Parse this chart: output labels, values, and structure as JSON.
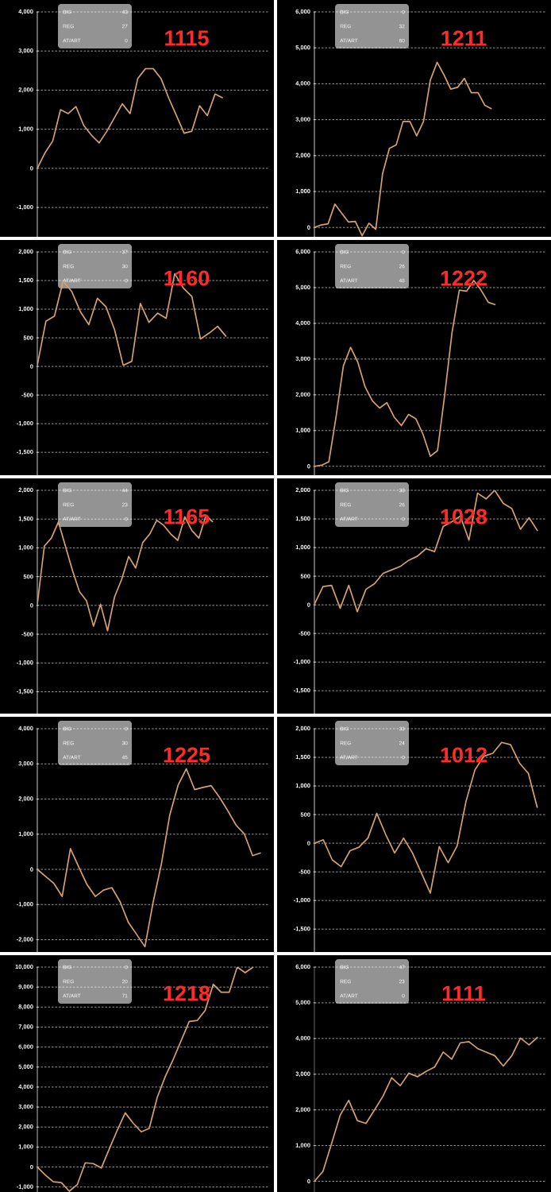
{
  "chart_data": [
    {
      "type": "line",
      "title": "1115",
      "annotations": [
        "BIG",
        "43",
        "REG",
        "27",
        "AT/ART",
        "0"
      ],
      "color": "#d4a070",
      "grid": true,
      "tick_labels": "y",
      "categories": [
        null,
        null,
        null,
        null,
        null,
        null,
        null,
        null,
        null,
        null,
        null,
        null,
        null,
        null,
        null,
        null,
        null,
        null,
        null,
        null,
        null,
        null,
        null,
        null,
        null,
        null,
        null,
        null,
        null,
        null,
        null
      ],
      "values": [
        0,
        400,
        700,
        1500,
        1400,
        1580,
        1100,
        850,
        650,
        950,
        1300,
        1650,
        1400,
        2300,
        2550,
        2550,
        2300,
        1800,
        1350,
        900,
        950,
        1600,
        1350,
        1900,
        1800,
        null,
        null,
        null,
        null,
        null,
        null
      ],
      "ylim": [
        -1750,
        4000
      ],
      "yticks": [
        {
          "value": -1000,
          "label": "-1,000"
        },
        0,
        {
          "value": 1000,
          "label": "1,000"
        },
        {
          "value": 2000,
          "label": "2,000"
        },
        {
          "value": 3000,
          "label": "3,000"
        },
        {
          "value": 4000,
          "label": "4,000"
        }
      ]
    },
    {
      "type": "line",
      "title": "1211",
      "annotations": [
        "BIG",
        "0",
        "REG",
        "32",
        "AT/ART",
        "60"
      ],
      "color": "#d4a070",
      "grid": true,
      "tick_labels": "y",
      "categories": [
        null,
        null,
        null,
        null,
        null,
        null,
        null,
        null,
        null,
        null,
        null,
        null,
        null,
        null,
        null,
        null,
        null,
        null,
        null,
        null,
        null,
        null,
        null,
        null,
        null,
        null,
        null,
        null,
        null,
        null,
        null,
        null,
        null,
        null,
        null
      ],
      "values": [
        0,
        70,
        100,
        650,
        400,
        150,
        170,
        -230,
        120,
        -50,
        1500,
        2200,
        2300,
        2950,
        2950,
        2550,
        2950,
        4100,
        4600,
        4250,
        3850,
        3900,
        4150,
        3750,
        3750,
        3400,
        3300,
        null,
        null,
        null,
        null,
        null,
        null,
        null,
        null
      ],
      "ylim": [
        -260,
        6000
      ],
      "yticks": [
        0,
        {
          "value": 1000,
          "label": "1,000"
        },
        {
          "value": 2000,
          "label": "2,000"
        },
        {
          "value": 3000,
          "label": "3,000"
        },
        {
          "value": 4000,
          "label": "4,000"
        },
        {
          "value": 5000,
          "label": "5,000"
        },
        {
          "value": 6000,
          "label": "6,000"
        }
      ]
    },
    {
      "type": "line",
      "title": "1160",
      "annotations": [
        "BIG",
        "37",
        "REG",
        "30",
        "AT/ART",
        "0"
      ],
      "color": "#d4a070",
      "grid": true,
      "tick_labels": "y",
      "categories": [
        null,
        null,
        null,
        null,
        null,
        null,
        null,
        null,
        null,
        null,
        null,
        null,
        null,
        null,
        null,
        null,
        null,
        null,
        null,
        null,
        null,
        null,
        null,
        null,
        null,
        null,
        null,
        null
      ],
      "values": [
        20,
        790,
        880,
        1490,
        1310,
        960,
        730,
        1190,
        1040,
        640,
        20,
        90,
        1100,
        770,
        930,
        840,
        1620,
        1370,
        1220,
        480,
        580,
        700,
        520,
        null,
        null,
        null,
        null,
        null
      ],
      "ylim": [
        -1900,
        2000
      ],
      "yticks": [
        {
          "value": -1500,
          "label": "-1,500"
        },
        {
          "value": -1000,
          "label": "-1,000"
        },
        -500,
        0,
        500,
        {
          "value": 1000,
          "label": "1,000"
        },
        {
          "value": 1500,
          "label": "1,500"
        },
        {
          "value": 2000,
          "label": "2,000"
        }
      ]
    },
    {
      "type": "line",
      "title": "1222",
      "annotations": [
        "BIG",
        "0",
        "REG",
        "26",
        "AT/ART",
        "48"
      ],
      "color": "#d4a070",
      "grid": true,
      "tick_labels": "y",
      "categories": [
        null,
        null,
        null,
        null,
        null,
        null,
        null,
        null,
        null,
        null,
        null,
        null,
        null,
        null,
        null,
        null,
        null,
        null,
        null,
        null,
        null,
        null,
        null,
        null,
        null,
        null,
        null,
        null,
        null,
        null,
        null,
        null,
        null
      ],
      "values": [
        0,
        30,
        130,
        1400,
        2810,
        3330,
        2910,
        2220,
        1830,
        1630,
        1780,
        1380,
        1140,
        1450,
        1330,
        890,
        280,
        440,
        2020,
        3750,
        4930,
        4900,
        5200,
        4930,
        4590,
        4520,
        null,
        null,
        null,
        null,
        null,
        null,
        null
      ],
      "ylim": [
        -250,
        6000
      ],
      "yticks": [
        0,
        {
          "value": 1000,
          "label": "1,000"
        },
        {
          "value": 2000,
          "label": "2,000"
        },
        {
          "value": 3000,
          "label": "3,000"
        },
        {
          "value": 4000,
          "label": "4,000"
        },
        {
          "value": 5000,
          "label": "5,000"
        },
        {
          "value": 6000,
          "label": "6,000"
        }
      ]
    },
    {
      "type": "line",
      "title": "1165",
      "annotations": [
        "BIG",
        "44",
        "REG",
        "23",
        "AT/ART",
        "0"
      ],
      "color": "#d4a070",
      "grid": true,
      "tick_labels": "y",
      "categories": [
        null,
        null,
        null,
        null,
        null,
        null,
        null,
        null,
        null,
        null,
        null,
        null,
        null,
        null,
        null,
        null,
        null,
        null,
        null,
        null,
        null,
        null,
        null,
        null,
        null,
        null,
        null,
        null,
        null,
        null,
        null,
        null,
        null,
        null
      ],
      "values": [
        20,
        1030,
        1170,
        1450,
        1030,
        610,
        240,
        80,
        -360,
        20,
        -440,
        150,
        450,
        850,
        650,
        1090,
        1240,
        1480,
        1390,
        1240,
        1130,
        1540,
        1300,
        1170,
        1560,
        1450,
        null,
        null,
        null,
        null,
        null,
        null,
        null,
        null
      ],
      "ylim": [
        -1880,
        2000
      ],
      "yticks": [
        {
          "value": -1500,
          "label": "-1,500"
        },
        {
          "value": -1000,
          "label": "-1,000"
        },
        -500,
        0,
        500,
        {
          "value": 1000,
          "label": "1,000"
        },
        {
          "value": 1500,
          "label": "1,500"
        },
        {
          "value": 2000,
          "label": "2,000"
        }
      ]
    },
    {
      "type": "line",
      "title": "1028",
      "annotations": [
        "BIG",
        "38",
        "REG",
        "26",
        "AT/ART",
        "0"
      ],
      "color": "#d4a070",
      "grid": true,
      "tick_labels": "y",
      "categories": [
        null,
        null,
        null,
        null,
        null,
        null,
        null,
        null,
        null,
        null,
        null,
        null,
        null,
        null,
        null,
        null,
        null,
        null,
        null,
        null,
        null,
        null,
        null,
        null,
        null,
        null,
        null,
        null
      ],
      "values": [
        10,
        320,
        340,
        -60,
        340,
        -120,
        270,
        370,
        550,
        610,
        670,
        780,
        850,
        980,
        930,
        1370,
        1450,
        1550,
        1130,
        1950,
        1850,
        2000,
        1770,
        1680,
        1320,
        1520,
        1290,
        null
      ],
      "ylim": [
        -1900,
        2000
      ],
      "yticks": [
        {
          "value": -1500,
          "label": "-1,500"
        },
        {
          "value": -1000,
          "label": "-1,000"
        },
        -500,
        0,
        500,
        {
          "value": 1000,
          "label": "1,000"
        },
        {
          "value": 1500,
          "label": "1,500"
        },
        {
          "value": 2000,
          "label": "2,000"
        }
      ]
    },
    {
      "type": "line",
      "title": "1225",
      "annotations": [
        "BIG",
        "0",
        "REG",
        "30",
        "AT/ART",
        "45"
      ],
      "color": "#d4a070",
      "grid": true,
      "tick_labels": "y",
      "categories": [
        null,
        null,
        null,
        null,
        null,
        null,
        null,
        null,
        null,
        null,
        null,
        null,
        null,
        null,
        null,
        null,
        null,
        null,
        null,
        null,
        null,
        null,
        null,
        null,
        null,
        null,
        null,
        null,
        null
      ],
      "values": [
        0,
        -200,
        -400,
        -770,
        590,
        70,
        -430,
        -770,
        -590,
        -520,
        -920,
        -1510,
        -1850,
        -2200,
        -920,
        170,
        1550,
        2390,
        2860,
        2270,
        2330,
        2380,
        2050,
        1670,
        1260,
        1010,
        390,
        470,
        null
      ],
      "ylim": [
        -2350,
        4000
      ],
      "yticks": [
        {
          "value": -2000,
          "label": "-2,000"
        },
        {
          "value": -1000,
          "label": "-1,000"
        },
        0,
        {
          "value": 1000,
          "label": "1,000"
        },
        {
          "value": 2000,
          "label": "2,000"
        },
        {
          "value": 3000,
          "label": "3,000"
        },
        {
          "value": 4000,
          "label": "4,000"
        }
      ]
    },
    {
      "type": "line",
      "title": "1012",
      "annotations": [
        "BIG",
        "33",
        "REG",
        "24",
        "AT/ART",
        "0"
      ],
      "color": "#d4a070",
      "grid": true,
      "tick_labels": "y",
      "categories": [
        null,
        null,
        null,
        null,
        null,
        null,
        null,
        null,
        null,
        null,
        null,
        null,
        null,
        null,
        null,
        null,
        null,
        null,
        null,
        null,
        null,
        null,
        null,
        null,
        null,
        null,
        null
      ],
      "values": [
        0,
        60,
        -290,
        -410,
        -130,
        -70,
        90,
        520,
        150,
        -170,
        90,
        -170,
        -520,
        -870,
        -60,
        -340,
        -50,
        730,
        1280,
        1520,
        1570,
        1760,
        1720,
        1400,
        1220,
        620,
        null
      ],
      "ylim": [
        -1900,
        2000
      ],
      "yticks": [
        {
          "value": -1500,
          "label": "-1,500"
        },
        {
          "value": -1000,
          "label": "-1,000"
        },
        -500,
        0,
        500,
        {
          "value": 1000,
          "label": "1,000"
        },
        {
          "value": 1500,
          "label": "1,500"
        },
        {
          "value": 2000,
          "label": "2,000"
        }
      ]
    },
    {
      "type": "line",
      "title": "1218",
      "annotations": [
        "BIG",
        "0",
        "REG",
        "20",
        "AT/ART",
        "71"
      ],
      "color": "#d4a070",
      "grid": true,
      "tick_labels": "y",
      "categories": [
        null,
        null,
        null,
        null,
        null,
        null,
        null,
        null,
        null,
        null,
        null,
        null,
        null,
        null,
        null,
        null,
        null,
        null,
        null,
        null,
        null,
        null,
        null,
        null,
        null,
        null,
        null,
        null,
        null,
        null
      ],
      "values": [
        0,
        -400,
        -740,
        -780,
        -1210,
        -880,
        210,
        170,
        -50,
        900,
        1840,
        2710,
        2190,
        1760,
        1930,
        3480,
        4520,
        5380,
        6330,
        7280,
        7330,
        7830,
        9140,
        8740,
        8740,
        10000,
        9720,
        10000,
        null,
        null
      ],
      "ylim": [
        -1250,
        10000
      ],
      "yticks": [
        {
          "value": -1000,
          "label": "-1,000"
        },
        0,
        {
          "value": 1000,
          "label": "1,000"
        },
        {
          "value": 2000,
          "label": "2,000"
        },
        {
          "value": 3000,
          "label": "3,000"
        },
        {
          "value": 4000,
          "label": "4,000"
        },
        {
          "value": 5000,
          "label": "5,000"
        },
        {
          "value": 6000,
          "label": "6,000"
        },
        {
          "value": 7000,
          "label": "7,000"
        },
        {
          "value": 8000,
          "label": "8,000"
        },
        {
          "value": 9000,
          "label": "9,000"
        },
        {
          "value": 10000,
          "label": "10,000"
        }
      ]
    },
    {
      "type": "line",
      "title": "1111",
      "annotations": [
        "BIG",
        "47",
        "REG",
        "23",
        "AT/ART",
        "0"
      ],
      "color": "#d4a070",
      "grid": true,
      "tick_labels": "y",
      "categories": [
        null,
        null,
        null,
        null,
        null,
        null,
        null,
        null,
        null,
        null,
        null,
        null,
        null,
        null,
        null,
        null,
        null,
        null,
        null,
        null,
        null,
        null,
        null,
        null,
        null,
        null,
        null,
        null
      ],
      "values": [
        0,
        280,
        1060,
        1850,
        2270,
        1700,
        1620,
        2000,
        2390,
        2900,
        2680,
        3030,
        2930,
        3080,
        3200,
        3620,
        3420,
        3880,
        3910,
        3720,
        3620,
        3520,
        3230,
        3520,
        4010,
        3820,
        4040,
        null
      ],
      "ylim": [
        -300,
        6000
      ],
      "yticks": [
        0,
        {
          "value": 1000,
          "label": "1,000"
        },
        {
          "value": 2000,
          "label": "2,000"
        },
        {
          "value": 3000,
          "label": "3,000"
        },
        {
          "value": 4000,
          "label": "4,000"
        },
        {
          "value": 5000,
          "label": "5,000"
        },
        {
          "value": 6000,
          "label": "6,000"
        }
      ]
    }
  ]
}
